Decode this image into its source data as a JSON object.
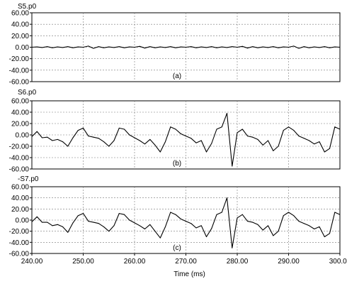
{
  "chart_data": [
    {
      "type": "line",
      "title": "S5.p0",
      "panel_label": "(a)",
      "xlim": [
        240,
        300
      ],
      "ylim": [
        -60,
        60
      ],
      "yticks": [
        "60.00",
        "40.00",
        "20.00",
        "0.00",
        "-20.00",
        "-40.00",
        "-60.00"
      ],
      "grid": true,
      "series": [
        {
          "x": [
            240,
            241,
            242,
            243,
            244,
            245,
            246,
            247,
            248,
            249,
            250,
            251,
            252,
            253,
            254,
            255,
            256,
            257,
            258,
            259,
            260,
            261,
            262,
            263,
            264,
            265,
            266,
            267,
            268,
            269,
            270,
            271,
            272,
            273,
            274,
            275,
            276,
            277,
            278,
            279,
            280,
            281,
            282,
            283,
            284,
            285,
            286,
            287,
            288,
            289,
            290,
            291,
            292,
            293,
            294,
            295,
            296,
            297,
            298,
            299,
            300
          ],
          "y": [
            0,
            0.5,
            -0.5,
            1,
            -1,
            0.5,
            -0.5,
            1,
            -1,
            0.5,
            0,
            2,
            -2,
            1,
            -1,
            0.5,
            -0.5,
            1,
            -1,
            0.5,
            0,
            1.5,
            -1.5,
            1,
            -1,
            0.5,
            -0.5,
            1,
            -1,
            0.5,
            0,
            1,
            -1,
            0.5,
            -0.5,
            1,
            -1,
            0.5,
            -0.5,
            1,
            0,
            1.5,
            -1.5,
            1,
            -1,
            0.5,
            -0.5,
            1,
            -1,
            0.5,
            0,
            2,
            -2,
            1,
            -1,
            0.5,
            -0.5,
            1,
            -1,
            0.5,
            0
          ]
        }
      ]
    },
    {
      "type": "line",
      "title": "S6.p0",
      "panel_label": "(b)",
      "xlim": [
        240,
        300
      ],
      "ylim": [
        -60,
        60
      ],
      "yticks": [
        "60.00",
        "40.00",
        "20.00",
        "0.00",
        "-20.00",
        "-40.00",
        "-60.00"
      ],
      "grid": true,
      "series": [
        {
          "x": [
            240,
            241,
            242,
            243,
            244,
            245,
            246,
            247,
            248,
            249,
            250,
            251,
            252,
            253,
            254,
            255,
            256,
            257,
            258,
            259,
            260,
            261,
            262,
            263,
            264,
            265,
            266,
            267,
            268,
            269,
            270,
            271,
            272,
            273,
            274,
            275,
            276,
            277,
            278,
            279,
            280,
            281,
            282,
            283,
            284,
            285,
            286,
            287,
            288,
            289,
            290,
            291,
            292,
            293,
            294,
            295,
            296,
            297,
            298,
            299,
            300
          ],
          "y": [
            -3,
            6,
            -5,
            -4,
            -10,
            -8,
            -12,
            -20,
            -5,
            8,
            12,
            -2,
            -4,
            -6,
            -12,
            -20,
            -10,
            12,
            10,
            0,
            -5,
            -10,
            -16,
            -8,
            -18,
            -30,
            -12,
            14,
            10,
            2,
            -2,
            -6,
            -14,
            -10,
            -30,
            -15,
            10,
            14,
            38,
            -55,
            4,
            10,
            -2,
            -4,
            -8,
            -18,
            -10,
            -28,
            -20,
            8,
            14,
            8,
            -2,
            -6,
            -10,
            -16,
            -12,
            -30,
            -24,
            14,
            10
          ]
        }
      ]
    },
    {
      "type": "line",
      "title": "-S7.p0",
      "panel_label": "(c)",
      "xlim": [
        240,
        300
      ],
      "ylim": [
        -60,
        60
      ],
      "yticks": [
        "60.00",
        "40.00",
        "20.00",
        "0.00",
        "-20.00",
        "-40.00",
        "-60.00"
      ],
      "xticks": [
        "240.00",
        "250.00",
        "260.00",
        "270.00",
        "280.00",
        "290.00",
        "300.00"
      ],
      "xlabel": "Time  (ms)",
      "grid": true,
      "series": [
        {
          "x": [
            240,
            241,
            242,
            243,
            244,
            245,
            246,
            247,
            248,
            249,
            250,
            251,
            252,
            253,
            254,
            255,
            256,
            257,
            258,
            259,
            260,
            261,
            262,
            263,
            264,
            265,
            266,
            267,
            268,
            269,
            270,
            271,
            272,
            273,
            274,
            275,
            276,
            277,
            278,
            279,
            280,
            281,
            282,
            283,
            284,
            285,
            286,
            287,
            288,
            289,
            290,
            291,
            292,
            293,
            294,
            295,
            296,
            297,
            298,
            299,
            300
          ],
          "y": [
            -3,
            6,
            -4,
            -4,
            -10,
            -8,
            -12,
            -22,
            -5,
            8,
            12,
            -2,
            -4,
            -6,
            -12,
            -20,
            -10,
            12,
            10,
            0,
            -5,
            -10,
            -16,
            -8,
            -20,
            -32,
            -12,
            14,
            10,
            2,
            -2,
            -6,
            -14,
            -10,
            -30,
            -15,
            10,
            14,
            40,
            -50,
            4,
            10,
            -2,
            -4,
            -8,
            -18,
            -10,
            -28,
            -20,
            8,
            14,
            8,
            -2,
            -6,
            -10,
            -16,
            -12,
            -30,
            -24,
            14,
            10
          ]
        }
      ]
    }
  ]
}
